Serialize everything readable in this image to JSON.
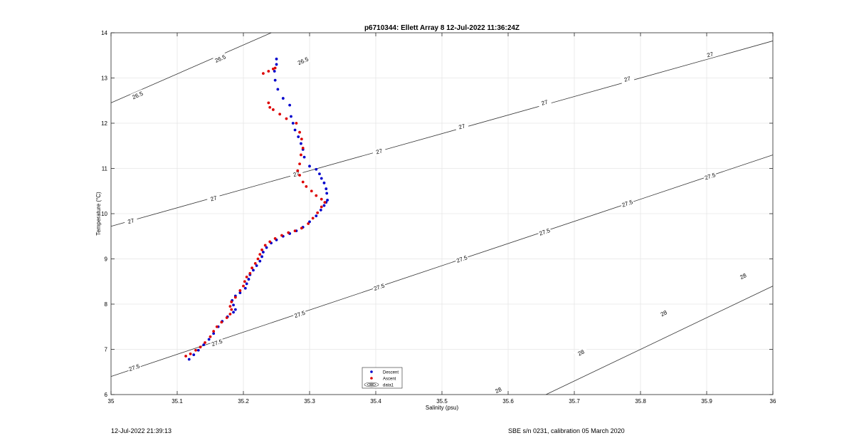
{
  "chart_data": {
    "type": "scatter",
    "title": "p6710344: Ellett Array 8 12-Jul-2022 11:36:24Z",
    "xlabel": "Salinity (psu)",
    "ylabel": "Temperature (°C)",
    "xlim": [
      35,
      36
    ],
    "ylim": [
      6,
      14
    ],
    "xticks": [
      35,
      35.1,
      35.2,
      35.3,
      35.4,
      35.5,
      35.6,
      35.7,
      35.8,
      35.9,
      36
    ],
    "yticks": [
      6,
      7,
      8,
      9,
      10,
      11,
      12,
      13,
      14
    ],
    "xtick_labels": [
      "35",
      "35.1",
      "35.2",
      "35.3",
      "35.4",
      "35.5",
      "35.6",
      "35.7",
      "35.8",
      "35.9",
      "36"
    ],
    "ytick_labels": [
      "6",
      "7",
      "8",
      "9",
      "10",
      "11",
      "12",
      "13",
      "14"
    ],
    "grid": true,
    "legend_position": "bottom-center",
    "legend": [
      "Descent",
      "Ascent",
      "data1"
    ],
    "series": [
      {
        "name": "Descent",
        "color": "#0000cc",
        "points": [
          [
            35.118,
            6.78
          ],
          [
            35.125,
            6.88
          ],
          [
            35.132,
            6.98
          ],
          [
            35.14,
            7.1
          ],
          [
            35.148,
            7.22
          ],
          [
            35.155,
            7.35
          ],
          [
            35.162,
            7.5
          ],
          [
            35.168,
            7.62
          ],
          [
            35.176,
            7.72
          ],
          [
            35.185,
            7.82
          ],
          [
            35.188,
            7.88
          ],
          [
            35.185,
            7.98
          ],
          [
            35.183,
            8.08
          ],
          [
            35.188,
            8.18
          ],
          [
            35.195,
            8.25
          ],
          [
            35.203,
            8.35
          ],
          [
            35.205,
            8.45
          ],
          [
            35.208,
            8.55
          ],
          [
            35.21,
            8.65
          ],
          [
            35.215,
            8.75
          ],
          [
            35.22,
            8.85
          ],
          [
            35.225,
            8.95
          ],
          [
            35.228,
            9.05
          ],
          [
            35.23,
            9.15
          ],
          [
            35.235,
            9.25
          ],
          [
            35.242,
            9.35
          ],
          [
            35.25,
            9.42
          ],
          [
            35.26,
            9.5
          ],
          [
            35.27,
            9.56
          ],
          [
            35.28,
            9.62
          ],
          [
            35.29,
            9.7
          ],
          [
            35.3,
            9.82
          ],
          [
            35.31,
            9.95
          ],
          [
            35.317,
            10.08
          ],
          [
            35.322,
            10.18
          ],
          [
            35.325,
            10.25
          ],
          [
            35.327,
            10.3
          ],
          [
            35.326,
            10.45
          ],
          [
            35.325,
            10.55
          ],
          [
            35.322,
            10.68
          ],
          [
            35.318,
            10.78
          ],
          [
            35.315,
            10.88
          ],
          [
            35.31,
            10.98
          ],
          [
            35.3,
            11.05
          ],
          [
            35.292,
            11.25
          ],
          [
            35.29,
            11.42
          ],
          [
            35.287,
            11.55
          ],
          [
            35.283,
            11.7
          ],
          [
            35.278,
            11.85
          ],
          [
            35.275,
            12.0
          ],
          [
            35.272,
            12.15
          ],
          [
            35.27,
            12.4
          ],
          [
            35.26,
            12.55
          ],
          [
            35.252,
            12.75
          ],
          [
            35.248,
            12.95
          ],
          [
            35.247,
            13.15
          ],
          [
            35.25,
            13.3
          ],
          [
            35.25,
            13.42
          ]
        ]
      },
      {
        "name": "Ascent",
        "color": "#dd0000",
        "points": [
          [
            35.113,
            6.85
          ],
          [
            35.12,
            6.9
          ],
          [
            35.128,
            6.98
          ],
          [
            35.135,
            7.05
          ],
          [
            35.142,
            7.15
          ],
          [
            35.15,
            7.28
          ],
          [
            35.155,
            7.4
          ],
          [
            35.16,
            7.5
          ],
          [
            35.167,
            7.6
          ],
          [
            35.175,
            7.7
          ],
          [
            35.18,
            7.78
          ],
          [
            35.182,
            7.88
          ],
          [
            35.18,
            7.95
          ],
          [
            35.182,
            8.05
          ],
          [
            35.188,
            8.15
          ],
          [
            35.195,
            8.3
          ],
          [
            35.2,
            8.4
          ],
          [
            35.202,
            8.5
          ],
          [
            35.205,
            8.6
          ],
          [
            35.21,
            8.68
          ],
          [
            35.213,
            8.8
          ],
          [
            35.218,
            8.9
          ],
          [
            35.222,
            9.0
          ],
          [
            35.225,
            9.1
          ],
          [
            35.228,
            9.2
          ],
          [
            35.233,
            9.3
          ],
          [
            35.24,
            9.38
          ],
          [
            35.248,
            9.45
          ],
          [
            35.258,
            9.52
          ],
          [
            35.268,
            9.58
          ],
          [
            35.278,
            9.62
          ],
          [
            35.288,
            9.68
          ],
          [
            35.298,
            9.78
          ],
          [
            35.305,
            9.9
          ],
          [
            35.312,
            10.02
          ],
          [
            35.318,
            10.15
          ],
          [
            35.323,
            10.25
          ],
          [
            35.318,
            10.32
          ],
          [
            35.31,
            10.4
          ],
          [
            35.303,
            10.5
          ],
          [
            35.295,
            10.6
          ],
          [
            35.29,
            10.7
          ],
          [
            35.285,
            10.85
          ],
          [
            35.282,
            10.95
          ],
          [
            35.285,
            11.1
          ],
          [
            35.287,
            11.3
          ],
          [
            35.29,
            11.45
          ],
          [
            35.288,
            11.65
          ],
          [
            35.285,
            11.8
          ],
          [
            35.28,
            12.0
          ],
          [
            35.265,
            12.1
          ],
          [
            35.255,
            12.2
          ],
          [
            35.245,
            12.3
          ],
          [
            35.24,
            12.35
          ],
          [
            35.238,
            12.45
          ],
          [
            35.23,
            13.1
          ],
          [
            35.238,
            13.15
          ],
          [
            35.245,
            13.2
          ],
          [
            35.248,
            13.22
          ]
        ]
      }
    ],
    "isopycnal_labels": [
      "26.5",
      "27",
      "27.5",
      "28"
    ],
    "isopycnals": [
      {
        "label": "26.5",
        "t0": 12.45,
        "slope": 6.4,
        "label_points": [
          [
            35.04,
            12.62
          ],
          [
            35.165,
            13.43
          ],
          [
            35.29,
            13.38
          ]
        ]
      },
      {
        "label": "27",
        "t0": 9.72,
        "slope": 4.1,
        "label_points": [
          [
            35.03,
            9.84
          ],
          [
            35.155,
            10.34
          ],
          [
            35.28,
            10.88
          ],
          [
            35.405,
            11.38
          ],
          [
            35.53,
            11.93
          ],
          [
            35.655,
            12.46
          ],
          [
            35.78,
            12.98
          ],
          [
            35.905,
            13.52
          ]
        ]
      },
      {
        "label": "27.5",
        "t0": 6.4,
        "slope": 4.9,
        "label_points": [
          [
            35.035,
            6.6
          ],
          [
            35.16,
            7.15
          ],
          [
            35.285,
            7.78
          ],
          [
            35.405,
            8.38
          ],
          [
            35.53,
            9.0
          ],
          [
            35.655,
            9.6
          ],
          [
            35.78,
            10.23
          ],
          [
            35.905,
            10.83
          ]
        ]
      },
      {
        "label": "28",
        "t0": 1.4,
        "slope": 7.0,
        "label_points": [
          [
            35.585,
            6.1
          ],
          [
            35.71,
            6.93
          ],
          [
            35.835,
            7.8
          ],
          [
            35.955,
            8.62
          ]
        ]
      }
    ]
  },
  "footer": {
    "left": "12-Jul-2022 21:39:13",
    "right": "SBE s/n 0231, calibration 05 March 2020"
  }
}
